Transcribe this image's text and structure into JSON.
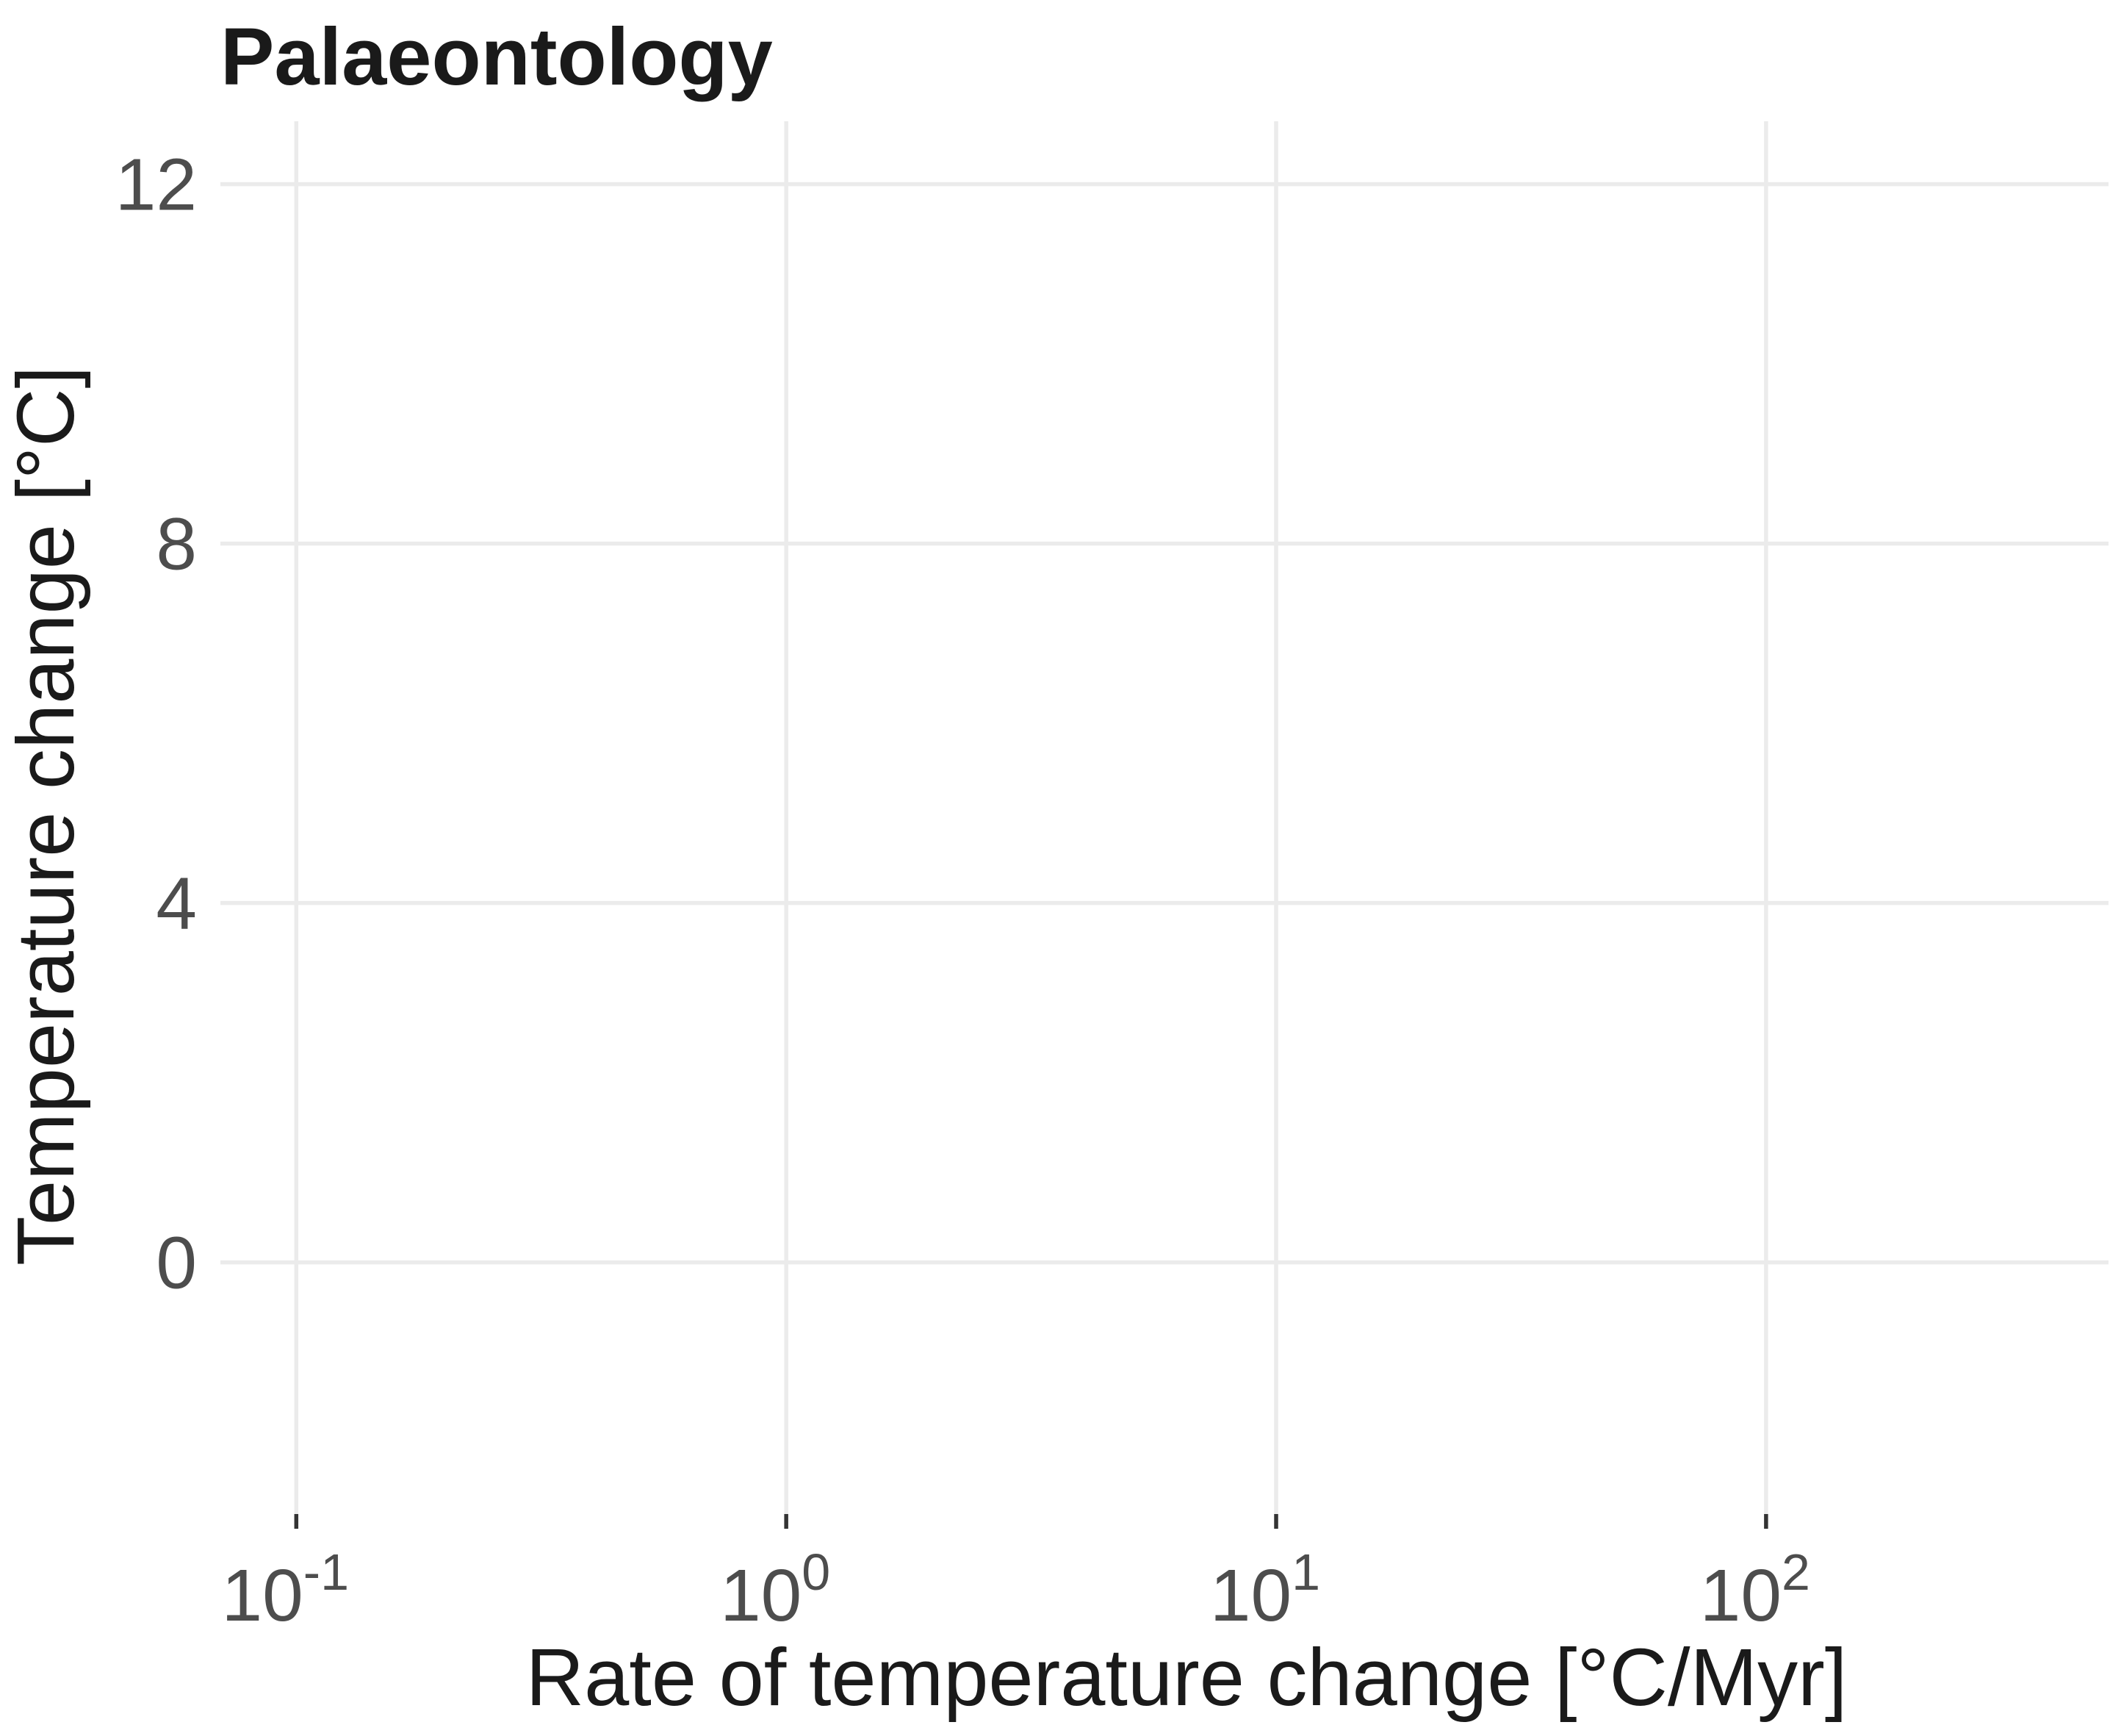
{
  "chart_data": {
    "type": "scatter",
    "title": "Palaeontology",
    "xlabel": "Rate of temperature change [°C/Myr]",
    "ylabel": "Temperature change [°C]",
    "x_scale": "log10",
    "x_ticks": [
      {
        "value": 0.1,
        "base": "10",
        "exp": "-1"
      },
      {
        "value": 1,
        "base": "10",
        "exp": "0"
      },
      {
        "value": 10,
        "base": "10",
        "exp": "1"
      },
      {
        "value": 100,
        "base": "10",
        "exp": "2"
      }
    ],
    "y_ticks": [
      {
        "value": 0,
        "label": "0"
      },
      {
        "value": 4,
        "label": "4"
      },
      {
        "value": 8,
        "label": "8"
      },
      {
        "value": 12,
        "label": "12"
      }
    ],
    "xlim": [
      0.07,
      500
    ],
    "ylim": [
      -2.8,
      12.7
    ],
    "grid": true,
    "series": []
  }
}
